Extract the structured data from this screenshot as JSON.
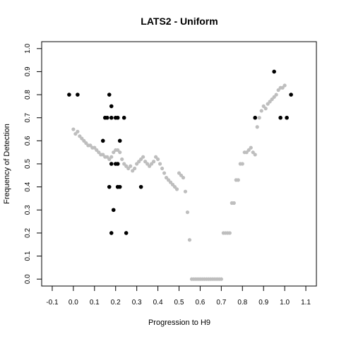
{
  "chart_data": {
    "type": "scatter",
    "title": "LATS2 - Uniform",
    "xlabel": "Progression to H9",
    "ylabel": "Frequency of Detection",
    "xlim": [
      -0.15,
      1.15
    ],
    "ylim": [
      -0.03,
      1.03
    ],
    "xticks": [
      -0.1,
      0.0,
      0.1,
      0.2,
      0.3,
      0.4,
      0.5,
      0.6,
      0.7,
      0.8,
      0.9,
      1.0,
      1.1
    ],
    "xtick_labels": [
      "-0.1",
      "0.0",
      "0.1",
      "0.2",
      "0.3",
      "0.4",
      "0.5",
      "0.6",
      "0.7",
      "0.8",
      "0.9",
      "1.0",
      "1.1"
    ],
    "yticks": [
      0.0,
      0.1,
      0.2,
      0.3,
      0.4,
      0.5,
      0.6,
      0.7,
      0.8,
      0.9,
      1.0
    ],
    "ytick_labels": [
      "0.0",
      "0.1",
      "0.2",
      "0.3",
      "0.4",
      "0.5",
      "0.6",
      "0.7",
      "0.8",
      "0.9",
      "1.0"
    ],
    "grid": false,
    "legend": "none",
    "colors": {
      "observed": "#000000",
      "smoothed": "#bebebe"
    },
    "series": [
      {
        "color": "#bebebe",
        "x": [
          0.0,
          0.01,
          0.02,
          0.03,
          0.04,
          0.05,
          0.06,
          0.07,
          0.08,
          0.09,
          0.1,
          0.11,
          0.12,
          0.13,
          0.14,
          0.15,
          0.16,
          0.17,
          0.18,
          0.19,
          0.2,
          0.21,
          0.22,
          0.23,
          0.24,
          0.25,
          0.26,
          0.27,
          0.28,
          0.29,
          0.3,
          0.31,
          0.32,
          0.33,
          0.34,
          0.35,
          0.36,
          0.37,
          0.38,
          0.39,
          0.4,
          0.41,
          0.42,
          0.43,
          0.44,
          0.45,
          0.46,
          0.47,
          0.48,
          0.49,
          0.5,
          0.51,
          0.52,
          0.53,
          0.54,
          0.55,
          0.56,
          0.57,
          0.58,
          0.59,
          0.6,
          0.61,
          0.62,
          0.63,
          0.64,
          0.65,
          0.66,
          0.67,
          0.68,
          0.69,
          0.7,
          0.71,
          0.72,
          0.73,
          0.74,
          0.75,
          0.76,
          0.77,
          0.78,
          0.79,
          0.8,
          0.81,
          0.82,
          0.83,
          0.84,
          0.85,
          0.86,
          0.87,
          0.88,
          0.89,
          0.9,
          0.91,
          0.92,
          0.93,
          0.94,
          0.95,
          0.96,
          0.97,
          0.98,
          0.99,
          1.0
        ],
        "y": [
          0.65,
          0.63,
          0.64,
          0.62,
          0.61,
          0.6,
          0.59,
          0.58,
          0.58,
          0.57,
          0.57,
          0.56,
          0.55,
          0.54,
          0.54,
          0.53,
          0.53,
          0.52,
          0.53,
          0.55,
          0.56,
          0.56,
          0.55,
          0.52,
          0.5,
          0.49,
          0.48,
          0.49,
          0.47,
          0.48,
          0.5,
          0.51,
          0.52,
          0.53,
          0.51,
          0.5,
          0.49,
          0.5,
          0.51,
          0.53,
          0.52,
          0.5,
          0.48,
          0.46,
          0.44,
          0.43,
          0.42,
          0.41,
          0.4,
          0.39,
          0.46,
          0.45,
          0.44,
          0.38,
          0.29,
          0.17,
          0.0,
          0.0,
          0.0,
          0.0,
          0.0,
          0.0,
          0.0,
          0.0,
          0.0,
          0.0,
          0.0,
          0.0,
          0.0,
          0.0,
          0.0,
          0.2,
          0.2,
          0.2,
          0.2,
          0.33,
          0.33,
          0.43,
          0.43,
          0.5,
          0.5,
          0.55,
          0.55,
          0.56,
          0.57,
          0.55,
          0.54,
          0.66,
          0.7,
          0.73,
          0.75,
          0.74,
          0.76,
          0.77,
          0.78,
          0.79,
          0.8,
          0.82,
          0.83,
          0.83,
          0.84
        ]
      },
      {
        "color": "#000000",
        "x": [
          -0.02,
          0.02,
          0.15,
          0.16,
          0.17,
          0.18,
          0.18,
          0.14,
          0.2,
          0.21,
          0.22,
          0.24,
          0.21,
          0.18,
          0.2,
          0.21,
          0.17,
          0.21,
          0.22,
          0.19,
          0.18,
          0.25,
          0.32,
          0.86,
          0.95,
          0.98,
          1.01,
          1.03
        ],
        "y": [
          0.8,
          0.8,
          0.7,
          0.7,
          0.8,
          0.75,
          0.7,
          0.6,
          0.7,
          0.7,
          0.6,
          0.7,
          0.5,
          0.5,
          0.5,
          0.4,
          0.4,
          0.4,
          0.4,
          0.3,
          0.2,
          0.2,
          0.4,
          0.7,
          0.9,
          0.7,
          0.7,
          0.8
        ]
      }
    ]
  }
}
